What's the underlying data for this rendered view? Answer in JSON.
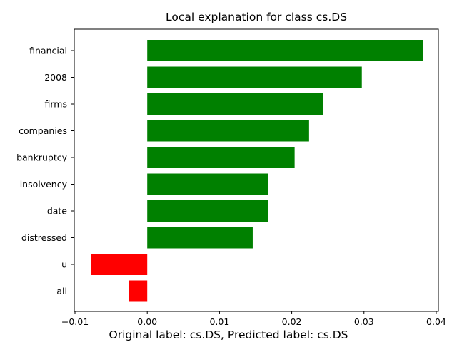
{
  "chart_data": {
    "type": "bar",
    "orientation": "horizontal",
    "title": "Local explanation for class cs.DS",
    "xlabel": "Original label: cs.DS, Predicted label: cs.DS",
    "ylabel": "",
    "categories": [
      "financial",
      "2008",
      "firms",
      "companies",
      "bankruptcy",
      "insolvency",
      "date",
      "distressed",
      "u",
      "all"
    ],
    "values": [
      0.0382,
      0.0297,
      0.0243,
      0.0224,
      0.0204,
      0.0167,
      0.0167,
      0.0146,
      -0.0078,
      -0.0025
    ],
    "xlim": [
      -0.0101,
      0.0403
    ],
    "xticks": [
      -0.01,
      0.0,
      0.01,
      0.02,
      0.03,
      0.04
    ],
    "xtick_labels": [
      "−0.01",
      "0.00",
      "0.01",
      "0.02",
      "0.03",
      "0.04"
    ],
    "grid": false,
    "colors": {
      "positive": "#008000",
      "negative": "#ff0000"
    }
  }
}
